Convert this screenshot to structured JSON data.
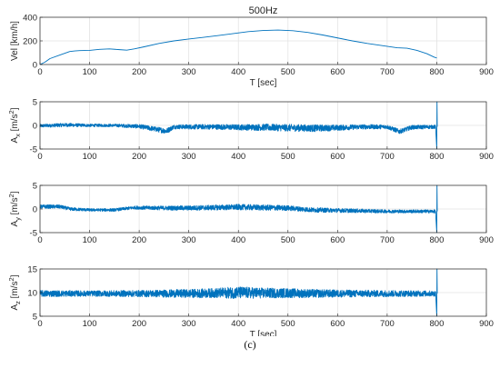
{
  "figure": {
    "caption": "(c)",
    "series_color": "#0072BD",
    "axis_color": "#262626",
    "grid_color": "#e3e3e3"
  },
  "chart_data": [
    {
      "type": "line",
      "title": "500Hz",
      "xlabel": "T [sec]",
      "ylabel": "Vel [km/h]",
      "xlim": [
        0,
        900
      ],
      "ylim": [
        0,
        400
      ],
      "xticks": [
        0,
        100,
        200,
        300,
        400,
        500,
        600,
        700,
        800,
        900
      ],
      "yticks": [
        0,
        200,
        400
      ],
      "grid": true,
      "x": [
        0,
        10,
        20,
        40,
        60,
        70,
        80,
        100,
        120,
        140,
        160,
        175,
        190,
        210,
        240,
        270,
        300,
        330,
        360,
        390,
        420,
        450,
        480,
        510,
        540,
        570,
        600,
        630,
        660,
        690,
        720,
        740,
        760,
        780,
        795,
        800
      ],
      "y": [
        0,
        20,
        50,
        80,
        110,
        115,
        118,
        120,
        128,
        132,
        126,
        122,
        132,
        150,
        178,
        200,
        216,
        230,
        246,
        262,
        278,
        288,
        292,
        286,
        272,
        250,
        225,
        200,
        178,
        160,
        142,
        138,
        120,
        92,
        62,
        55
      ]
    },
    {
      "type": "line",
      "title": "",
      "xlabel": "",
      "ylabel": "A_x [m/s^2]",
      "ylabel_parts": {
        "main": "A",
        "sub": "x",
        "rest": " [m/s",
        "sup": "2",
        "end": "]"
      },
      "xlim": [
        0,
        900
      ],
      "ylim": [
        -5,
        5
      ],
      "xticks": [
        0,
        100,
        200,
        300,
        400,
        500,
        600,
        700,
        800,
        900
      ],
      "yticks": [
        -5,
        0,
        5
      ],
      "grid": true,
      "x": [
        0,
        50,
        100,
        150,
        200,
        255,
        270,
        300,
        350,
        400,
        450,
        500,
        550,
        600,
        650,
        700,
        725,
        750,
        790,
        798,
        800,
        802
      ],
      "y": [
        -0.1,
        0.1,
        0,
        0,
        -0.2,
        -1.2,
        -0.3,
        -0.3,
        -0.3,
        -0.4,
        -0.4,
        -0.5,
        -0.6,
        -0.5,
        -0.3,
        -0.3,
        -1.3,
        -0.4,
        -0.3,
        -0.3,
        -5,
        5
      ],
      "amplitude": [
        0.35,
        0.4,
        0.3,
        0.3,
        0.45,
        0.6,
        0.45,
        0.5,
        0.55,
        0.6,
        0.7,
        0.75,
        0.75,
        0.6,
        0.5,
        0.45,
        0.5,
        0.45,
        0.4,
        0.4,
        0,
        0
      ]
    },
    {
      "type": "line",
      "title": "",
      "xlabel": "",
      "ylabel": "A_y [m/s^2]",
      "ylabel_parts": {
        "main": "A",
        "sub": "y",
        "rest": " [m/s",
        "sup": "2",
        "end": "]"
      },
      "xlim": [
        0,
        900
      ],
      "ylim": [
        -5,
        5
      ],
      "xticks": [
        0,
        100,
        200,
        300,
        400,
        500,
        600,
        700,
        800,
        900
      ],
      "yticks": [
        -5,
        0,
        5
      ],
      "grid": true,
      "x": [
        0,
        40,
        60,
        100,
        150,
        190,
        250,
        300,
        350,
        400,
        450,
        500,
        550,
        600,
        650,
        700,
        750,
        790,
        798,
        800,
        802
      ],
      "y": [
        0.5,
        0.5,
        0,
        -0.2,
        -0.2,
        0.3,
        0.2,
        0.2,
        0.3,
        0.4,
        0.3,
        0.2,
        -0.2,
        -0.3,
        -0.4,
        -0.5,
        -0.5,
        -0.5,
        -0.5,
        -5,
        5
      ],
      "amplitude": [
        0.4,
        0.4,
        0.35,
        0.3,
        0.3,
        0.35,
        0.45,
        0.5,
        0.55,
        0.6,
        0.6,
        0.55,
        0.5,
        0.45,
        0.4,
        0.35,
        0.35,
        0.35,
        0.35,
        0,
        0
      ]
    },
    {
      "type": "line",
      "title": "",
      "xlabel": "T [sec]",
      "ylabel": "A_z [m/s^2]",
      "ylabel_parts": {
        "main": "A",
        "sub": "z",
        "rest": " [m/s",
        "sup": "2",
        "end": "]"
      },
      "xlim": [
        0,
        900
      ],
      "ylim": [
        5,
        15
      ],
      "xticks": [
        0,
        100,
        200,
        300,
        400,
        500,
        600,
        700,
        800,
        900
      ],
      "yticks": [
        5,
        10,
        15
      ],
      "grid": true,
      "x": [
        0,
        100,
        200,
        300,
        350,
        400,
        450,
        500,
        550,
        600,
        700,
        790,
        798,
        800,
        802
      ],
      "y": [
        9.8,
        9.8,
        9.8,
        9.8,
        9.9,
        10.0,
        9.9,
        9.9,
        9.8,
        9.8,
        9.8,
        9.8,
        9.8,
        5,
        15
      ],
      "amplitude": [
        0.7,
        0.6,
        0.7,
        0.9,
        1.0,
        1.3,
        1.1,
        1.0,
        0.9,
        0.8,
        0.7,
        0.6,
        0.6,
        0,
        0
      ]
    }
  ]
}
